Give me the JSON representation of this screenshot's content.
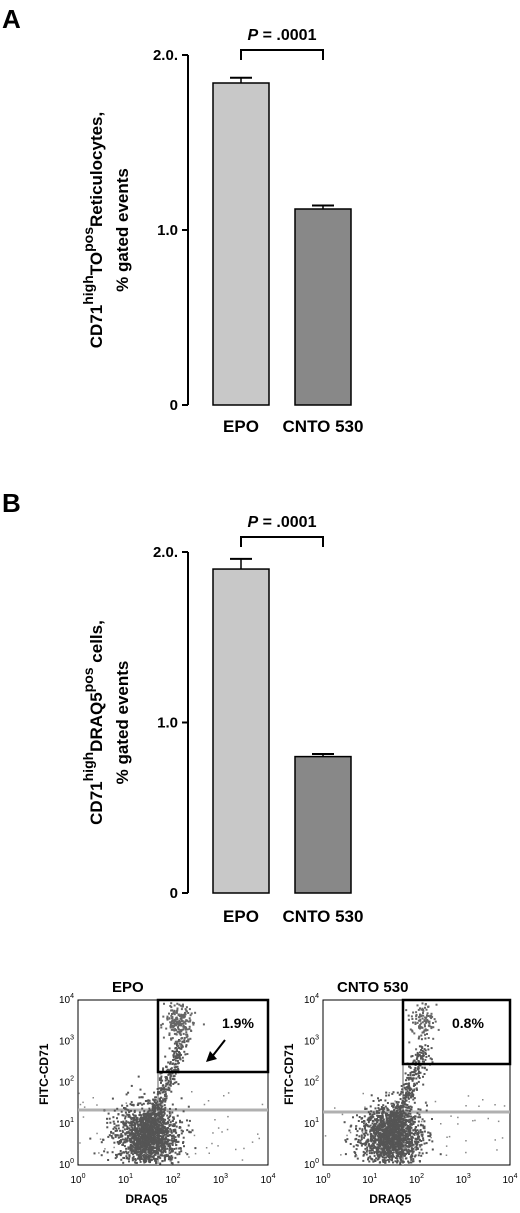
{
  "chart_data": [
    {
      "type": "bar",
      "panel": "A",
      "categories": [
        "EPO",
        "CNTO 530"
      ],
      "values": [
        1.84,
        1.12
      ],
      "errors": [
        0.03,
        0.02
      ],
      "ylim": [
        0,
        2.0
      ],
      "yticks": [
        "0",
        "1.0",
        "2.0."
      ],
      "ylabel_line1": "CD71",
      "ylabel_sup1": "high",
      "ylabel_mid": "TO",
      "ylabel_sup2": "pos",
      "ylabel_end": "Reticulocytes,",
      "ylabel_line2": "% gated events",
      "annotation_p": "P",
      "annotation_rest": " = .0001",
      "colors": [
        "#c8c8c8",
        "#888888"
      ]
    },
    {
      "type": "bar",
      "panel": "B",
      "categories": [
        "EPO",
        "CNTO 530"
      ],
      "values": [
        1.9,
        0.8
      ],
      "errors": [
        0.06,
        0.015
      ],
      "ylim": [
        0,
        2.0
      ],
      "yticks": [
        "0",
        "1.0",
        "2.0."
      ],
      "ylabel_line1": "CD71",
      "ylabel_sup1": "high",
      "ylabel_mid": "DRAQ5",
      "ylabel_sup2": "pos",
      "ylabel_end": " cells,",
      "ylabel_line2": "% gated events",
      "annotation_p": "P",
      "annotation_rest": " = .0001",
      "colors": [
        "#c8c8c8",
        "#888888"
      ]
    }
  ],
  "flow_plots": [
    {
      "title": "EPO",
      "percent": "1.9%",
      "xlabel": "DRAQ5",
      "ylabel": "FITC-CD71",
      "arrow": true
    },
    {
      "title": "CNTO 530",
      "percent": "0.8%",
      "xlabel": "DRAQ5",
      "ylabel": "FITC-CD71",
      "arrow": false
    }
  ],
  "flow_ticks": [
    "0",
    "1",
    "2",
    "3",
    "4"
  ]
}
